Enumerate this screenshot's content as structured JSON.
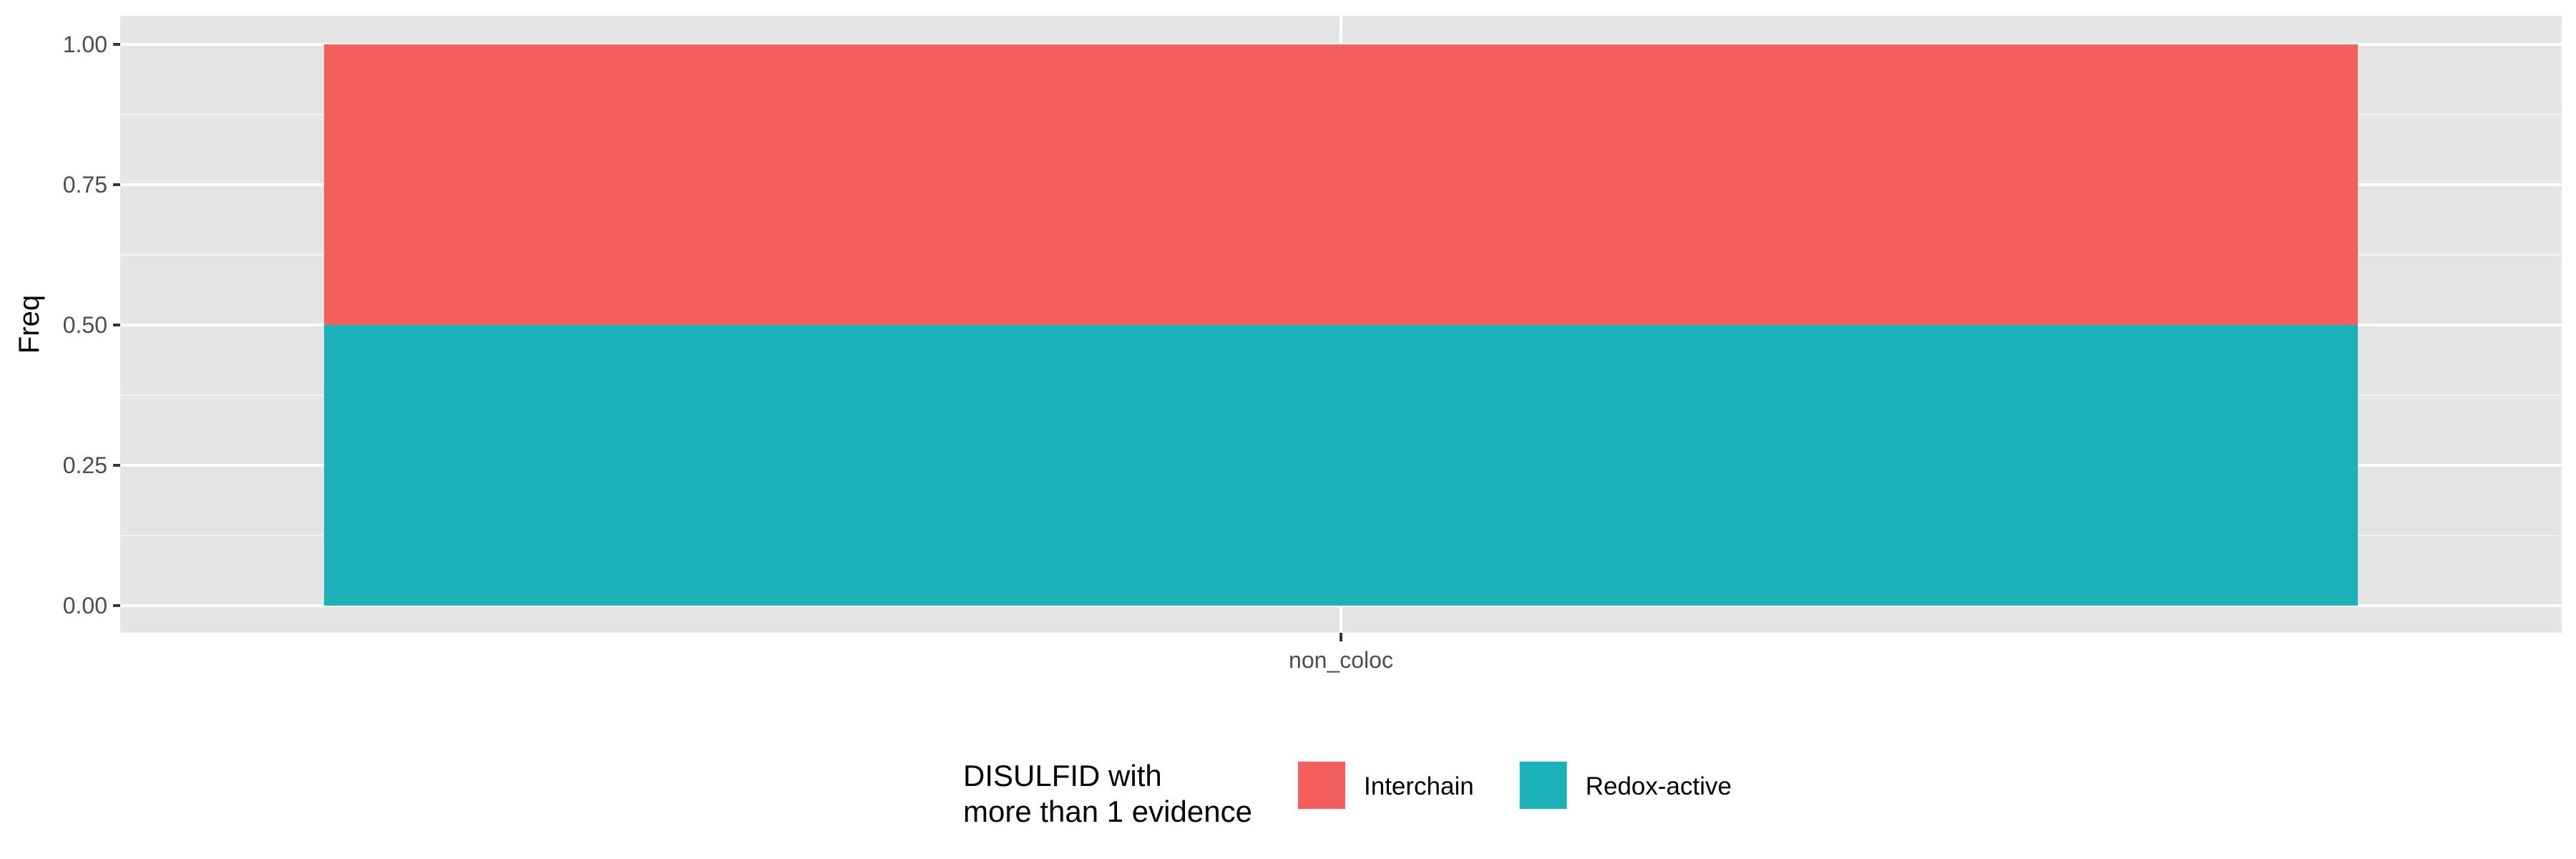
{
  "chart_data": {
    "type": "bar",
    "stacked": true,
    "categories": [
      "non_coloc"
    ],
    "series": [
      {
        "name": "Interchain",
        "values": [
          0.5
        ],
        "color": "#F25F5C"
      },
      {
        "name": "Redox-active",
        "values": [
          0.5
        ],
        "color": "#1AB2B8"
      }
    ],
    "xlabel": "",
    "ylabel": "Freq",
    "ylim": [
      0,
      1
    ],
    "yticks": [
      "0.00",
      "0.25",
      "0.50",
      "0.75",
      "1.00"
    ],
    "grid": true,
    "panel_background": "#E5E5E5",
    "legend": {
      "position": "bottom",
      "title_lines": [
        "DISULFID with",
        "more than 1 evidence"
      ]
    }
  }
}
